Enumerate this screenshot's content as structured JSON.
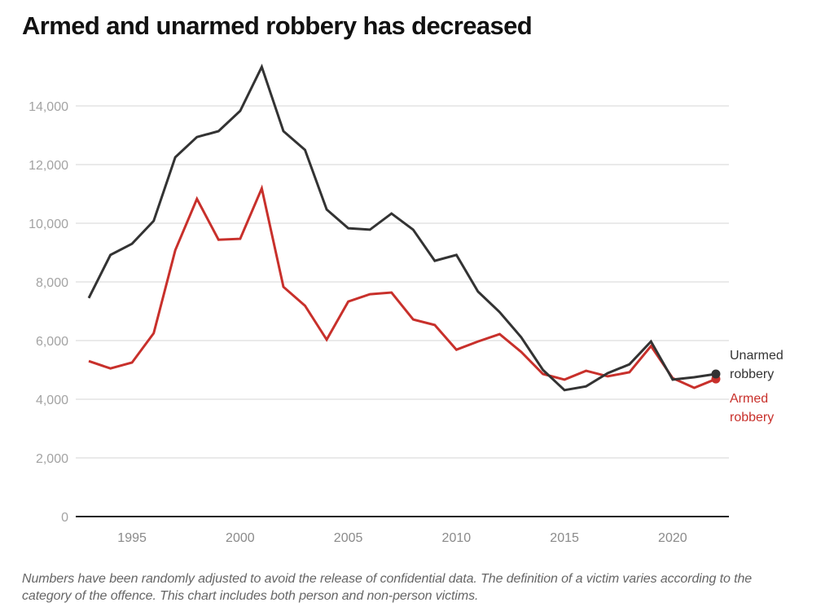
{
  "chart_data": {
    "type": "line",
    "title": "Armed and unarmed robbery has decreased",
    "xlabel": "",
    "ylabel": "",
    "x": [
      1993,
      1994,
      1995,
      1996,
      1997,
      1998,
      1999,
      2000,
      2001,
      2002,
      2003,
      2004,
      2005,
      2006,
      2007,
      2008,
      2009,
      2010,
      2011,
      2012,
      2013,
      2014,
      2015,
      2016,
      2017,
      2018,
      2019,
      2020,
      2021,
      2022
    ],
    "xlim": [
      1992,
      2023
    ],
    "ylim": [
      0,
      15500
    ],
    "x_ticks": [
      1995,
      2000,
      2005,
      2010,
      2015,
      2020
    ],
    "x_tick_labels": [
      "1995",
      "2000",
      "2005",
      "2010",
      "2015",
      "2020"
    ],
    "y_ticks": [
      0,
      2000,
      4000,
      6000,
      8000,
      10000,
      12000,
      14000
    ],
    "y_tick_labels": [
      "0",
      "2,000",
      "4,000",
      "6,000",
      "8,000",
      "10,000",
      "12,000",
      "14,000"
    ],
    "grid": true,
    "legend_placement": "right (direct labels at line ends)",
    "series": [
      {
        "name": "Unarmed robbery",
        "label_lines": [
          "Unarmed",
          "robbery"
        ],
        "color": "#333333",
        "values": [
          7450,
          8920,
          9300,
          10080,
          12250,
          12940,
          13140,
          13830,
          15330,
          13140,
          12500,
          10470,
          9830,
          9780,
          10330,
          9780,
          8720,
          8920,
          7670,
          6970,
          6110,
          5000,
          4310,
          4440,
          4890,
          5190,
          5970,
          4670,
          4750,
          4860
        ]
      },
      {
        "name": "Armed robbery",
        "label_lines": [
          "Armed",
          "robbery"
        ],
        "color": "#c8302b",
        "values": [
          5300,
          5050,
          5250,
          6250,
          9080,
          10830,
          9440,
          9470,
          11190,
          7830,
          7190,
          6030,
          7330,
          7580,
          7640,
          6720,
          6530,
          5690,
          5970,
          6220,
          5610,
          4860,
          4670,
          4970,
          4780,
          4920,
          5810,
          4720,
          4390,
          4690
        ]
      }
    ]
  },
  "footnote": "Numbers have been randomly adjusted to avoid the release of confidential data. The definition of a victim varies according to the category of the offence. This chart includes both person and non-person victims."
}
